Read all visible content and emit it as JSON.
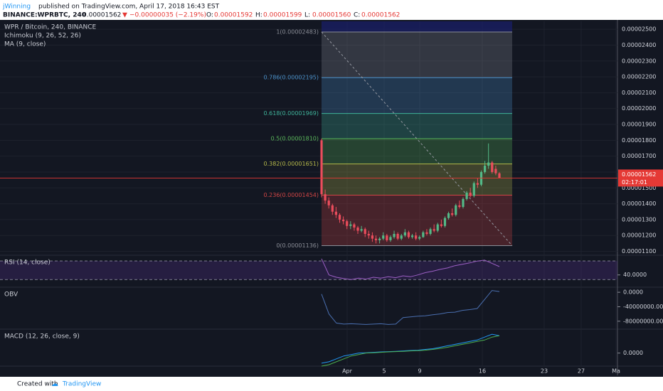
{
  "header": {
    "author": "jWinning",
    "published": "published on TradingView.com, April 17, 2018 16:43 EST",
    "symbol": "BINANCE:WPRBTC, 240",
    "last": "0.00001562",
    "change": "−0.00000035 (−2.19%)",
    "ohlc": [
      {
        "label": "O:",
        "value": "0.00001592"
      },
      {
        "label": "H:",
        "value": "0.00001599"
      },
      {
        "label": "L:",
        "value": "0.00001560"
      },
      {
        "label": "C:",
        "value": "0.00001562"
      }
    ]
  },
  "chart_data": [
    {
      "type": "candlestick",
      "title": "WPR / Bitcoin, 240, BINANCE",
      "indicators": [
        "Ichimoku (9, 26, 52, 26)",
        "MA (9, close)"
      ],
      "up_color": "#53b987",
      "down_color": "#eb4d5c",
      "open": [
        1.8e-05,
        1.46e-05,
        1.42e-05,
        1.39e-05,
        1.35e-05,
        1.33e-05,
        1.3e-05,
        1.29e-05,
        1.26e-05,
        1.27e-05,
        1.25e-05,
        1.23e-05,
        1.24e-05,
        1.21e-05,
        1.2e-05,
        1.18e-05,
        1.17e-05,
        1.18e-05,
        1.2e-05,
        1.17e-05,
        1.19e-05,
        1.21e-05,
        1.18e-05,
        1.2e-05,
        1.22e-05,
        1.19e-05,
        1.2e-05,
        1.18e-05,
        1.19e-05,
        1.22e-05,
        1.21e-05,
        1.24e-05,
        1.23e-05,
        1.27e-05,
        1.26e-05,
        1.31e-05,
        1.34e-05,
        1.33e-05,
        1.39e-05,
        1.38e-05,
        1.43e-05,
        1.47e-05,
        1.45e-05,
        1.53e-05,
        1.52e-05,
        1.6e-05,
        1.64e-05,
        1.66e-05,
        1.62e-05,
        1.592e-05
      ],
      "high": [
        1.81e-05,
        1.49e-05,
        1.44e-05,
        1.4e-05,
        1.38e-05,
        1.34e-05,
        1.32e-05,
        1.3e-05,
        1.29e-05,
        1.28e-05,
        1.26e-05,
        1.26e-05,
        1.25e-05,
        1.23e-05,
        1.22e-05,
        1.2e-05,
        1.19e-05,
        1.22e-05,
        1.21e-05,
        1.2e-05,
        1.23e-05,
        1.22e-05,
        1.21e-05,
        1.24e-05,
        1.23e-05,
        1.21e-05,
        1.22e-05,
        1.2e-05,
        1.23e-05,
        1.24e-05,
        1.25e-05,
        1.27e-05,
        1.28e-05,
        1.3e-05,
        1.32e-05,
        1.35e-05,
        1.37e-05,
        1.4e-05,
        1.42e-05,
        1.44e-05,
        1.48e-05,
        1.5e-05,
        1.54e-05,
        1.56e-05,
        1.61e-05,
        1.67e-05,
        1.78e-05,
        1.67e-05,
        1.64e-05,
        1.599e-05
      ],
      "low": [
        1.44e-05,
        1.4e-05,
        1.37e-05,
        1.33e-05,
        1.31e-05,
        1.28e-05,
        1.27e-05,
        1.24e-05,
        1.24e-05,
        1.23e-05,
        1.21e-05,
        1.22e-05,
        1.19e-05,
        1.18e-05,
        1.16e-05,
        1.15e-05,
        1.15e-05,
        1.17e-05,
        1.16e-05,
        1.16e-05,
        1.18e-05,
        1.17e-05,
        1.17e-05,
        1.19e-05,
        1.18e-05,
        1.18e-05,
        1.17e-05,
        1.17e-05,
        1.185e-05,
        1.2e-05,
        1.2e-05,
        1.22e-05,
        1.22e-05,
        1.25e-05,
        1.25e-05,
        1.3e-05,
        1.32e-05,
        1.32e-05,
        1.37e-05,
        1.37e-05,
        1.42e-05,
        1.44e-05,
        1.44e-05,
        1.5e-05,
        1.51e-05,
        1.59e-05,
        1.62e-05,
        1.59e-05,
        1.58e-05,
        1.56e-05
      ],
      "close": [
        1.46e-05,
        1.42e-05,
        1.39e-05,
        1.35e-05,
        1.33e-05,
        1.3e-05,
        1.29e-05,
        1.26e-05,
        1.27e-05,
        1.25e-05,
        1.23e-05,
        1.24e-05,
        1.21e-05,
        1.2e-05,
        1.18e-05,
        1.17e-05,
        1.18e-05,
        1.2e-05,
        1.17e-05,
        1.19e-05,
        1.21e-05,
        1.18e-05,
        1.2e-05,
        1.22e-05,
        1.19e-05,
        1.2e-05,
        1.18e-05,
        1.19e-05,
        1.22e-05,
        1.21e-05,
        1.24e-05,
        1.23e-05,
        1.27e-05,
        1.26e-05,
        1.31e-05,
        1.34e-05,
        1.33e-05,
        1.39e-05,
        1.38e-05,
        1.43e-05,
        1.47e-05,
        1.45e-05,
        1.53e-05,
        1.52e-05,
        1.6e-05,
        1.64e-05,
        1.66e-05,
        1.6e-05,
        1.592e-05,
        1.562e-05
      ],
      "ylim": [
        1.08e-05,
        2.55e-05
      ],
      "yticks": [
        {
          "value": 1.1e-05,
          "label": "0.00001100"
        },
        {
          "value": 1.2e-05,
          "label": "0.00001200"
        },
        {
          "value": 1.3e-05,
          "label": "0.00001300"
        },
        {
          "value": 1.4e-05,
          "label": "0.00001400"
        },
        {
          "value": 1.5e-05,
          "label": "0.00001500"
        },
        {
          "value": 1.6e-05,
          "label": "0.00001600"
        },
        {
          "value": 1.7e-05,
          "label": "0.00001700"
        },
        {
          "value": 1.8e-05,
          "label": "0.00001800"
        },
        {
          "value": 1.9e-05,
          "label": "0.00001900"
        },
        {
          "value": 2e-05,
          "label": "0.00002000"
        },
        {
          "value": 2.1e-05,
          "label": "0.00002100"
        },
        {
          "value": 2.2e-05,
          "label": "0.00002200"
        },
        {
          "value": 2.3e-05,
          "label": "0.00002300"
        },
        {
          "value": 2.4e-05,
          "label": "0.00002400"
        },
        {
          "value": 2.5e-05,
          "label": "0.00002500"
        }
      ],
      "last_price": {
        "value": 1.562e-05,
        "label": "0.00001562"
      },
      "countdown": "02:17:01",
      "fib_levels": [
        {
          "label": "1(0.00002483)",
          "value": 2.483e-05,
          "color": "#8a8d96"
        },
        {
          "label": "0.786(0.00002195)",
          "value": 2.195e-05,
          "color": "#4a90c8"
        },
        {
          "label": "0.618(0.00001969)",
          "value": 1.969e-05,
          "color": "#3fb39a"
        },
        {
          "label": "0.5(0.00001810)",
          "value": 1.81e-05,
          "color": "#5bb85b"
        },
        {
          "label": "0.382(0.00001651)",
          "value": 1.651e-05,
          "color": "#b5b84a"
        },
        {
          "label": "0.236(0.00001454)",
          "value": 1.454e-05,
          "color": "#d04545"
        },
        {
          "label": "0(0.00001136)",
          "value": 1.136e-05,
          "color": "#8a8d96"
        }
      ],
      "x_labels": [
        "Apr",
        "5",
        "9",
        "16",
        "23",
        "27",
        "Ma"
      ]
    },
    {
      "type": "line",
      "title": "RSI (14, close)",
      "ylim": [
        15,
        81
      ],
      "yticks": [
        {
          "value": 40,
          "label": "40.0000"
        }
      ],
      "bands": [
        30,
        70
      ],
      "series": [
        {
          "color": "#9c5fc4",
          "values": [
            75,
            40,
            35,
            32,
            30,
            33,
            31,
            35,
            33,
            36,
            34,
            38,
            36,
            40,
            45,
            48,
            52,
            55,
            60,
            63,
            66,
            70,
            72,
            65,
            58
          ]
        }
      ]
    },
    {
      "type": "line",
      "title": "OBV",
      "ylim": [
        -100000000,
        12000000
      ],
      "yticks": [
        {
          "value": 0,
          "label": "0.0000"
        },
        {
          "value": -40000000,
          "label": "-40000000.0000"
        },
        {
          "value": -80000000,
          "label": "-80000000.0000"
        }
      ],
      "series": [
        {
          "color": "#4a6fb0",
          "values": [
            -5000000,
            -60000000,
            -85000000,
            -88000000,
            -87000000,
            -88000000,
            -89000000,
            -88000000,
            -87000000,
            -89000000,
            -88000000,
            -70000000,
            -68000000,
            -66000000,
            -65000000,
            -62000000,
            -60000000,
            -56000000,
            -55000000,
            -50000000,
            -48000000,
            -45000000,
            -20000000,
            5000000,
            2000000
          ]
        }
      ]
    },
    {
      "type": "line",
      "title": "MACD (12, 26, close, 9)",
      "ylim": [
        -9e-07,
        1.6e-06
      ],
      "yticks": [
        {
          "value": 0,
          "label": "0.0000"
        }
      ],
      "series": [
        {
          "color": "#2196f3",
          "values": [
            -7e-07,
            -6e-07,
            -4e-07,
            -2e-07,
            -1e-07,
            0,
            2e-08,
            5e-08,
            8e-08,
            1e-07,
            1.2e-07,
            1.5e-07,
            1.8e-07,
            2e-07,
            2.5e-07,
            3e-07,
            4e-07,
            5e-07,
            6e-07,
            7e-07,
            8e-07,
            9e-07,
            1.1e-06,
            1.3e-06,
            1.2e-06
          ]
        },
        {
          "color": "#4caf50",
          "values": [
            -9e-07,
            -8e-07,
            -6e-07,
            -4e-07,
            -2e-07,
            -1e-07,
            0,
            2e-08,
            5e-08,
            8e-08,
            1e-07,
            1.2e-07,
            1.5e-07,
            1.7e-07,
            2e-07,
            2.5e-07,
            3.2e-07,
            4e-07,
            5e-07,
            6e-07,
            7e-07,
            8e-07,
            9e-07,
            1.1e-06,
            1.2e-06
          ]
        }
      ]
    }
  ],
  "footer": {
    "created": "Created with",
    "brand": "TradingView"
  }
}
